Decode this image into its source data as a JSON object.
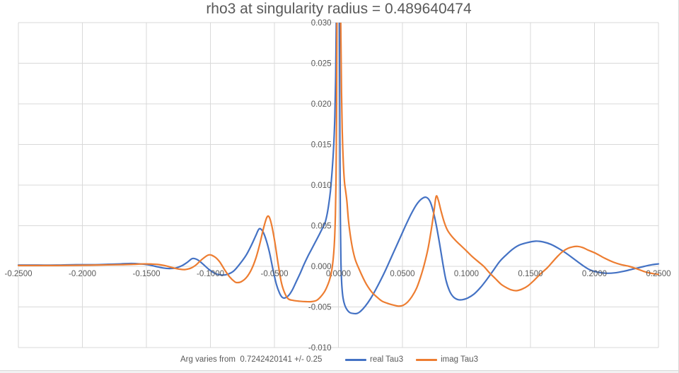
{
  "title": "rho3 at singularity radius = 0.489640474",
  "footnote": "Arg varies from  0.7242420141 +/- 0.25",
  "colors": {
    "grid": "#d9d9d9",
    "axis_text": "#595959",
    "title_text": "#595959",
    "border": "#d9d9d9",
    "series_real": "#4472c4",
    "series_imag": "#ed7d31"
  },
  "legend": {
    "items": [
      {
        "label": "real Tau3",
        "color": "#4472c4"
      },
      {
        "label": "imag Tau3",
        "color": "#ed7d31"
      }
    ]
  },
  "chart_data": {
    "type": "line",
    "title": "rho3 at singularity radius = 0.489640474",
    "xlabel": "",
    "ylabel": "",
    "x_range": [
      -0.25,
      0.25
    ],
    "y_range": [
      -0.01,
      0.03
    ],
    "grid": true,
    "legend_position": "bottom",
    "x_ticks": [
      {
        "v": -0.25,
        "label": "-0.2500"
      },
      {
        "v": -0.2,
        "label": "-0.2000"
      },
      {
        "v": -0.15,
        "label": "-0.1500"
      },
      {
        "v": -0.1,
        "label": "-0.1000"
      },
      {
        "v": -0.05,
        "label": "-0.0500"
      },
      {
        "v": 0.0,
        "label": "0.0000"
      },
      {
        "v": 0.05,
        "label": "0.0500"
      },
      {
        "v": 0.1,
        "label": "0.1000"
      },
      {
        "v": 0.15,
        "label": "0.1500"
      },
      {
        "v": 0.2,
        "label": "0.2000"
      },
      {
        "v": 0.25,
        "label": "0.2500"
      }
    ],
    "y_ticks": [
      {
        "v": 0.03,
        "label": "0.030"
      },
      {
        "v": 0.025,
        "label": "0.025"
      },
      {
        "v": 0.02,
        "label": "0.020"
      },
      {
        "v": 0.015,
        "label": "0.015"
      },
      {
        "v": 0.01,
        "label": "0.010"
      },
      {
        "v": 0.005,
        "label": "0.005"
      },
      {
        "v": 0.0,
        "label": "0.000"
      },
      {
        "v": -0.005,
        "label": "-0.005"
      },
      {
        "v": -0.01,
        "label": "-0.010"
      }
    ],
    "series": [
      {
        "name": "real Tau3",
        "color": "#4472c4",
        "points": [
          [
            -0.25,
            0.00015
          ],
          [
            -0.235,
            0.00015
          ],
          [
            -0.22,
            0.00015
          ],
          [
            -0.205,
            0.0002
          ],
          [
            -0.19,
            0.0002
          ],
          [
            -0.18,
            0.00025
          ],
          [
            -0.17,
            0.0003
          ],
          [
            -0.162,
            0.00035
          ],
          [
            -0.155,
            0.0003
          ],
          [
            -0.149,
            0.0002
          ],
          [
            -0.143,
            0.0
          ],
          [
            -0.137,
            -0.0002
          ],
          [
            -0.132,
            -0.00027
          ],
          [
            -0.127,
            -0.0002
          ],
          [
            -0.122,
            0.0001
          ],
          [
            -0.118,
            0.0005
          ],
          [
            -0.114,
            0.00096
          ],
          [
            -0.11,
            0.0008
          ],
          [
            -0.106,
            0.0003
          ],
          [
            -0.101,
            -0.0004
          ],
          [
            -0.096,
            -0.0009
          ],
          [
            -0.0915,
            -0.00107
          ],
          [
            -0.087,
            -0.001
          ],
          [
            -0.082,
            -0.0006
          ],
          [
            -0.077,
            0.0003
          ],
          [
            -0.072,
            0.0014
          ],
          [
            -0.068,
            0.0026
          ],
          [
            -0.0645,
            0.0038
          ],
          [
            -0.062,
            0.0046
          ],
          [
            -0.0595,
            0.0044
          ],
          [
            -0.057,
            0.0035
          ],
          [
            -0.054,
            0.0018
          ],
          [
            -0.051,
            -0.0005
          ],
          [
            -0.0485,
            -0.0022
          ],
          [
            -0.046,
            -0.0033
          ],
          [
            -0.044,
            -0.0038
          ],
          [
            -0.042,
            -0.0039
          ],
          [
            -0.039,
            -0.0036
          ],
          [
            -0.036,
            -0.0029
          ],
          [
            -0.033,
            -0.0019
          ],
          [
            -0.03,
            -0.0009
          ],
          [
            -0.027,
            0.0002
          ],
          [
            -0.024,
            0.0012
          ],
          [
            -0.021,
            0.0021
          ],
          [
            -0.018,
            0.003
          ],
          [
            -0.015,
            0.0039
          ],
          [
            -0.0128,
            0.0046
          ],
          [
            -0.0106,
            0.0053
          ],
          [
            -0.009,
            0.0063
          ],
          [
            -0.0076,
            0.0076
          ],
          [
            -0.0063,
            0.0092
          ],
          [
            -0.0052,
            0.0112
          ],
          [
            -0.0043,
            0.0132
          ],
          [
            -0.0035,
            0.0155
          ],
          [
            -0.0028,
            0.0185
          ],
          [
            -0.0022,
            0.023
          ],
          [
            -0.0017,
            0.03
          ],
          [
            -0.0014,
            0.043
          ],
          [
            -0.0009,
            0.08
          ],
          [
            0.0,
            0.08
          ],
          [
            0.0005,
            0.043
          ],
          [
            0.0009,
            0.024
          ],
          [
            0.0012,
            0.013
          ],
          [
            0.0015,
            0.006
          ],
          [
            0.0019,
            0.001
          ],
          [
            0.0022,
            -0.0008
          ],
          [
            0.0027,
            -0.0025
          ],
          [
            0.0036,
            -0.0039
          ],
          [
            0.005,
            -0.0048
          ],
          [
            0.007,
            -0.0054
          ],
          [
            0.009,
            -0.0057
          ],
          [
            0.0115,
            -0.0058
          ],
          [
            0.0145,
            -0.0058
          ],
          [
            0.0175,
            -0.0055
          ],
          [
            0.021,
            -0.0049
          ],
          [
            0.025,
            -0.004
          ],
          [
            0.029,
            -0.0029
          ],
          [
            0.033,
            -0.0017
          ],
          [
            0.037,
            -0.0004
          ],
          [
            0.041,
            0.001
          ],
          [
            0.045,
            0.0024
          ],
          [
            0.049,
            0.0038
          ],
          [
            0.053,
            0.0052
          ],
          [
            0.057,
            0.0065
          ],
          [
            0.061,
            0.0076
          ],
          [
            0.065,
            0.0083
          ],
          [
            0.0685,
            0.0085
          ],
          [
            0.0715,
            0.008
          ],
          [
            0.074,
            0.0068
          ],
          [
            0.0765,
            0.005
          ],
          [
            0.079,
            0.0028
          ],
          [
            0.0815,
            0.0004
          ],
          [
            0.084,
            -0.0017
          ],
          [
            0.087,
            -0.0031
          ],
          [
            0.09,
            -0.0038
          ],
          [
            0.0935,
            -0.0041
          ],
          [
            0.097,
            -0.0041
          ],
          [
            0.101,
            -0.0039
          ],
          [
            0.106,
            -0.0034
          ],
          [
            0.111,
            -0.0026
          ],
          [
            0.116,
            -0.0016
          ],
          [
            0.121,
            -0.0005
          ],
          [
            0.126,
            0.0006
          ],
          [
            0.131,
            0.0014
          ],
          [
            0.136,
            0.0021
          ],
          [
            0.141,
            0.0026
          ],
          [
            0.147,
            0.0029
          ],
          [
            0.154,
            0.0031
          ],
          [
            0.16,
            0.003
          ],
          [
            0.166,
            0.0027
          ],
          [
            0.172,
            0.0022
          ],
          [
            0.178,
            0.0016
          ],
          [
            0.184,
            0.0009
          ],
          [
            0.19,
            0.0002
          ],
          [
            0.196,
            -0.0004
          ],
          [
            0.202,
            -0.0007
          ],
          [
            0.209,
            -0.00085
          ],
          [
            0.216,
            -0.0008
          ],
          [
            0.223,
            -0.0006
          ],
          [
            0.231,
            -0.0003
          ],
          [
            0.239,
            0.0
          ],
          [
            0.245,
            0.0002
          ],
          [
            0.25,
            0.0003
          ]
        ]
      },
      {
        "name": "imag Tau3",
        "color": "#ed7d31",
        "points": [
          [
            -0.25,
            0.0001
          ],
          [
            -0.235,
            0.0001
          ],
          [
            -0.22,
            0.0001
          ],
          [
            -0.205,
            0.00012
          ],
          [
            -0.19,
            0.00015
          ],
          [
            -0.18,
            0.00018
          ],
          [
            -0.17,
            0.0002
          ],
          [
            -0.16,
            0.00025
          ],
          [
            -0.152,
            0.0003
          ],
          [
            -0.146,
            0.00028
          ],
          [
            -0.141,
            0.00023
          ],
          [
            -0.136,
            0.0001
          ],
          [
            -0.131,
            -0.0001
          ],
          [
            -0.126,
            -0.0003
          ],
          [
            -0.12,
            -0.0004
          ],
          [
            -0.115,
            -0.0002
          ],
          [
            -0.111,
            0.0002
          ],
          [
            -0.107,
            0.0008
          ],
          [
            -0.1015,
            0.0014
          ],
          [
            -0.097,
            0.0012
          ],
          [
            -0.093,
            0.0006
          ],
          [
            -0.089,
            -0.0004
          ],
          [
            -0.085,
            -0.0013
          ],
          [
            -0.081,
            -0.0019
          ],
          [
            -0.079,
            -0.002
          ],
          [
            -0.076,
            -0.0019
          ],
          [
            -0.072,
            -0.0014
          ],
          [
            -0.068,
            -0.0004
          ],
          [
            -0.0645,
            0.001
          ],
          [
            -0.0615,
            0.0027
          ],
          [
            -0.0585,
            0.0047
          ],
          [
            -0.056,
            0.006
          ],
          [
            -0.0542,
            0.0061
          ],
          [
            -0.0522,
            0.0051
          ],
          [
            -0.0497,
            0.003
          ],
          [
            -0.0472,
            0.0004
          ],
          [
            -0.0447,
            -0.0019
          ],
          [
            -0.0422,
            -0.0032
          ],
          [
            -0.0392,
            -0.004
          ],
          [
            -0.0352,
            -0.0042
          ],
          [
            -0.0302,
            -0.0043
          ],
          [
            -0.0252,
            -0.00435
          ],
          [
            -0.0212,
            -0.00435
          ],
          [
            -0.0172,
            -0.0042
          ],
          [
            -0.0142,
            -0.0038
          ],
          [
            -0.0112,
            -0.0032
          ],
          [
            -0.0092,
            -0.0026
          ],
          [
            -0.0072,
            -0.0018
          ],
          [
            -0.0057,
            -0.0009
          ],
          [
            -0.0046,
            0.0002
          ],
          [
            -0.0037,
            0.0016
          ],
          [
            -0.003,
            0.0034
          ],
          [
            -0.0024,
            0.0062
          ],
          [
            -0.0019,
            0.0105
          ],
          [
            -0.0015,
            0.018
          ],
          [
            -0.0011,
            0.033
          ],
          [
            -0.0007,
            0.08
          ],
          [
            0.0008,
            0.08
          ],
          [
            0.0013,
            0.043
          ],
          [
            0.0018,
            0.03
          ],
          [
            0.0024,
            0.0215
          ],
          [
            0.003,
            0.0165
          ],
          [
            0.0038,
            0.0128
          ],
          [
            0.0047,
            0.0104
          ],
          [
            0.0056,
            0.0093
          ],
          [
            0.0066,
            0.008
          ],
          [
            0.0078,
            0.0057
          ],
          [
            0.0092,
            0.0039
          ],
          [
            0.011,
            0.0022
          ],
          [
            0.0132,
            0.0008
          ],
          [
            0.0163,
            -0.0004
          ],
          [
            0.0192,
            -0.0014
          ],
          [
            0.0222,
            -0.0023
          ],
          [
            0.0262,
            -0.0032
          ],
          [
            0.0302,
            -0.0038
          ],
          [
            0.0342,
            -0.0043
          ],
          [
            0.0392,
            -0.0046
          ],
          [
            0.0437,
            -0.0048
          ],
          [
            0.047,
            -0.0049
          ],
          [
            0.0505,
            -0.0048
          ],
          [
            0.054,
            -0.0044
          ],
          [
            0.0575,
            -0.0037
          ],
          [
            0.061,
            -0.0027
          ],
          [
            0.064,
            -0.0014
          ],
          [
            0.067,
            0.0002
          ],
          [
            0.07,
            0.0022
          ],
          [
            0.0725,
            0.0045
          ],
          [
            0.0745,
            0.0066
          ],
          [
            0.0763,
            0.0086
          ],
          [
            0.0781,
            0.0081
          ],
          [
            0.08,
            0.0069
          ],
          [
            0.0825,
            0.0055
          ],
          [
            0.085,
            0.0045
          ],
          [
            0.088,
            0.0038
          ],
          [
            0.092,
            0.0031
          ],
          [
            0.096,
            0.0025
          ],
          [
            0.1,
            0.0019
          ],
          [
            0.1045,
            0.0012
          ],
          [
            0.109,
            0.0006
          ],
          [
            0.1135,
            0.0
          ],
          [
            0.118,
            -0.0008
          ],
          [
            0.1225,
            -0.0015
          ],
          [
            0.127,
            -0.0022
          ],
          [
            0.131,
            -0.0026
          ],
          [
            0.135,
            -0.0029
          ],
          [
            0.139,
            -0.003
          ],
          [
            0.1435,
            -0.0028
          ],
          [
            0.148,
            -0.0024
          ],
          [
            0.153,
            -0.0017
          ],
          [
            0.158,
            -0.0009
          ],
          [
            0.163,
            -0.0002
          ],
          [
            0.167,
            0.0005
          ],
          [
            0.171,
            0.0012
          ],
          [
            0.175,
            0.0018
          ],
          [
            0.179,
            0.0022
          ],
          [
            0.183,
            0.0024
          ],
          [
            0.187,
            0.00245
          ],
          [
            0.191,
            0.0023
          ],
          [
            0.195,
            0.002
          ],
          [
            0.201,
            0.0016
          ],
          [
            0.208,
            0.001
          ],
          [
            0.215,
            0.0005
          ],
          [
            0.221,
            0.0002
          ],
          [
            0.227,
            0.0
          ],
          [
            0.233,
            -0.0003
          ],
          [
            0.24,
            -0.0007
          ],
          [
            0.246,
            -0.0009
          ],
          [
            0.25,
            -0.001
          ]
        ]
      }
    ]
  }
}
